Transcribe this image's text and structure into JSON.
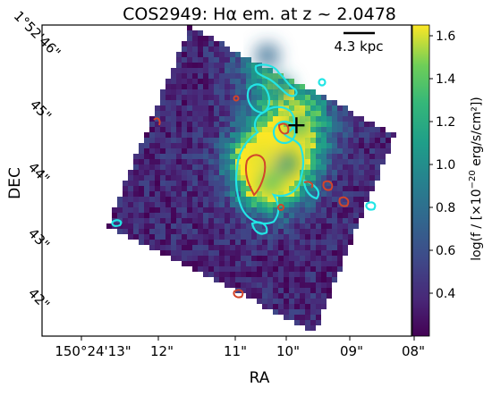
{
  "chart_data": {
    "type": "heatmap",
    "title": "COS2949: Hα em. at z ~ 2.0478",
    "xlabel": "RA",
    "ylabel": "DEC",
    "x_ticks": [
      "150°24'13\"",
      "12\"",
      "11\"",
      "10\"",
      "09\"",
      "08\""
    ],
    "y_ticks": [
      "42\"",
      "43\"",
      "44\"",
      "45\"",
      "1°52'46\""
    ],
    "scale_bar_label": "4.3 kpc",
    "colorbar": {
      "label_prefix": "log(f / [×10",
      "label_exponent": "−20",
      "label_suffix": " erg/s/cm²])",
      "range": [
        0.2,
        1.65
      ],
      "ticks": [
        "0.4",
        "0.6",
        "0.8",
        "1.0",
        "1.2",
        "1.4",
        "1.6"
      ],
      "colormap": "viridis"
    },
    "emission_peaks": [
      {
        "x": 10.0,
        "y": 44.8,
        "value": 1.3
      },
      {
        "x": 10.58,
        "y": 44.3,
        "value": 1.6
      },
      {
        "x": 10.45,
        "y": 43.9,
        "value": 1.35
      },
      {
        "x": 10.2,
        "y": 44.2,
        "value": 1.0
      },
      {
        "x": 10.3,
        "y": 45.4,
        "value": 0.95
      },
      {
        "x": 10.5,
        "y": 45.9,
        "value": 0.75
      }
    ],
    "cross_marker": {
      "x": 10.05,
      "y": 44.8
    },
    "contour_colors": {
      "cyan": "#22e5e5",
      "red": "#d2452a"
    },
    "background_level": 0.2
  }
}
